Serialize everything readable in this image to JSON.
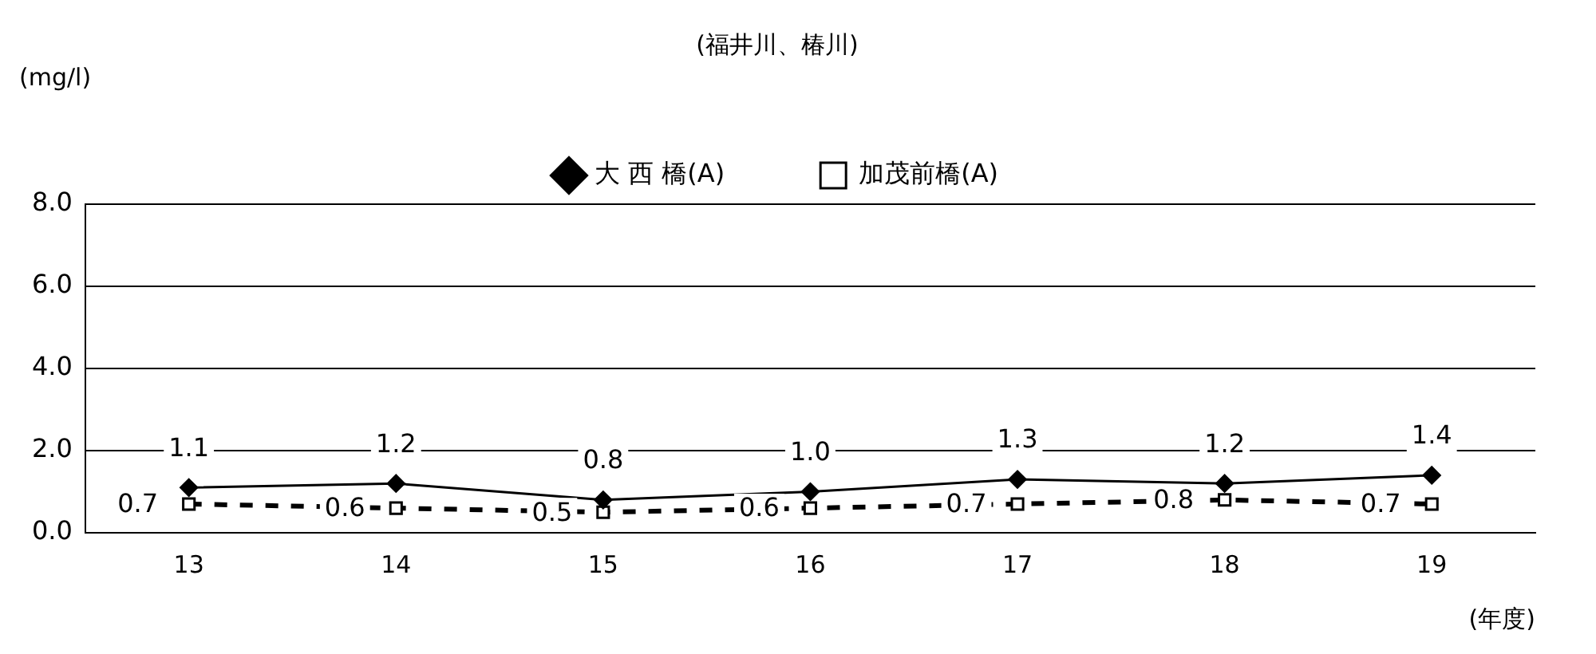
{
  "chart_data": {
    "type": "line",
    "title": "(福井川、椿川)",
    "ylabel": "(mg/l)",
    "xlabel": "(年度)",
    "categories": [
      "13",
      "14",
      "15",
      "16",
      "17",
      "18",
      "19"
    ],
    "ylim": [
      0,
      8
    ],
    "yticks": [
      {
        "value": 0,
        "label": "0.0"
      },
      {
        "value": 2,
        "label": "2.0"
      },
      {
        "value": 4,
        "label": "4.0"
      },
      {
        "value": 6,
        "label": "6.0"
      },
      {
        "value": 8,
        "label": "8.0"
      }
    ],
    "grid": "y",
    "legend": "top",
    "series": [
      {
        "name": "大 西 橋(A)",
        "color": "#000000",
        "marker": "diamond",
        "line_style": "solid",
        "values": [
          1.1,
          1.2,
          0.8,
          1.0,
          1.3,
          1.2,
          1.4
        ],
        "value_labels": [
          "1.1",
          "1.2",
          "0.8",
          "1.0",
          "1.3",
          "1.2",
          "1.4"
        ]
      },
      {
        "name": "加茂前橋(A)",
        "color": "#000000",
        "marker": "square",
        "line_style": "dashed",
        "values": [
          0.7,
          0.6,
          0.5,
          0.6,
          0.7,
          0.8,
          0.7
        ],
        "value_labels": [
          "0.7",
          "0.6",
          "0.5",
          "0.6",
          "0.7",
          "0.8",
          "0.7"
        ]
      }
    ]
  }
}
